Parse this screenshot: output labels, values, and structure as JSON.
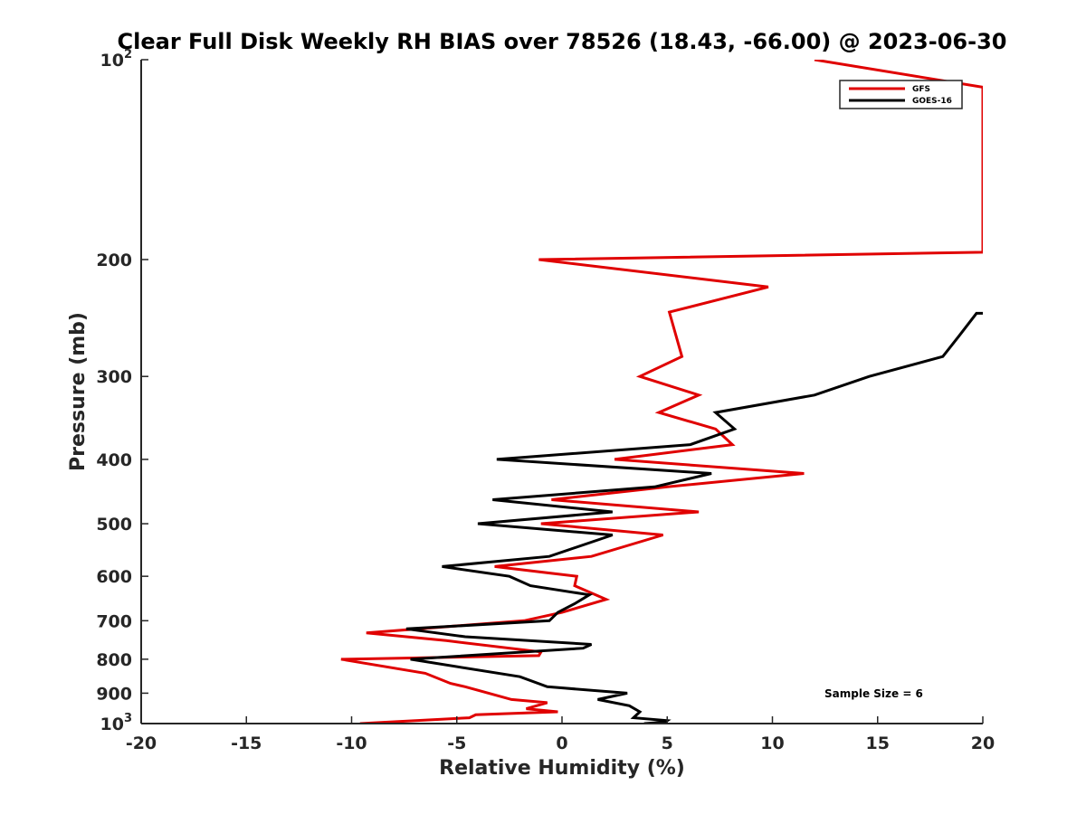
{
  "chart_data": {
    "type": "line",
    "title": "Clear Full Disk Weekly RH BIAS over 78526 (18.43, -66.00) @ 2023-06-30",
    "xlabel": "Relative Humidity (%)",
    "ylabel": "Pressure (mb)",
    "xlim": [
      -20,
      20
    ],
    "ylim": [
      100,
      1000
    ],
    "yscale": "log",
    "y_reversed": true,
    "grid": false,
    "legend_position": "top-right",
    "note": "Sample Size = 6",
    "x_ticks": [
      "-20",
      "-15",
      "-10",
      "-5",
      "0",
      "5",
      "10",
      "15",
      "20"
    ],
    "x_tick_values": [
      -20,
      -15,
      -10,
      -5,
      0,
      5,
      10,
      15,
      20
    ],
    "y_ticks": [
      {
        "value": 100,
        "base": "10",
        "exp": "2"
      },
      {
        "value": 200,
        "base": "200",
        "exp": ""
      },
      {
        "value": 300,
        "base": "300",
        "exp": ""
      },
      {
        "value": 400,
        "base": "400",
        "exp": ""
      },
      {
        "value": 500,
        "base": "500",
        "exp": ""
      },
      {
        "value": 600,
        "base": "600",
        "exp": ""
      },
      {
        "value": 700,
        "base": "700",
        "exp": ""
      },
      {
        "value": 800,
        "base": "800",
        "exp": ""
      },
      {
        "value": 900,
        "base": "900",
        "exp": ""
      },
      {
        "value": 1000,
        "base": "10",
        "exp": "3"
      }
    ],
    "series": [
      {
        "name": "GFS",
        "color": "#e00000",
        "points": [
          [
            12.0,
            100
          ],
          [
            20.0,
            110
          ],
          [
            20.0,
            195
          ],
          [
            -1.1,
            200
          ],
          [
            9.8,
            220
          ],
          [
            5.1,
            240
          ],
          [
            5.7,
            280
          ],
          [
            3.7,
            300
          ],
          [
            6.5,
            320
          ],
          [
            4.6,
            340
          ],
          [
            7.3,
            360
          ],
          [
            8.1,
            380
          ],
          [
            2.5,
            400
          ],
          [
            11.5,
            420
          ],
          [
            5.0,
            440
          ],
          [
            -0.5,
            460
          ],
          [
            6.5,
            480
          ],
          [
            -1.0,
            500
          ],
          [
            4.8,
            520
          ],
          [
            1.4,
            560
          ],
          [
            -3.2,
            580
          ],
          [
            0.7,
            600
          ],
          [
            0.6,
            620
          ],
          [
            2.1,
            650
          ],
          [
            0.0,
            680
          ],
          [
            -1.8,
            700
          ],
          [
            -9.3,
            730
          ],
          [
            -5.5,
            750
          ],
          [
            -1.0,
            780
          ],
          [
            -1.1,
            790
          ],
          [
            -10.5,
            800
          ],
          [
            -6.5,
            840
          ],
          [
            -5.3,
            870
          ],
          [
            -4.6,
            880
          ],
          [
            -2.4,
            920
          ],
          [
            -0.7,
            930
          ],
          [
            -1.7,
            950
          ],
          [
            -0.2,
            960
          ],
          [
            -4.1,
            970
          ],
          [
            -4.4,
            980
          ],
          [
            -9.6,
            1000
          ]
        ]
      },
      {
        "name": "GOES-16",
        "color": "#000000",
        "points": [
          [
            20.0,
            241
          ],
          [
            19.7,
            241
          ],
          [
            18.9,
            260
          ],
          [
            18.1,
            280
          ],
          [
            14.6,
            300
          ],
          [
            12.0,
            320
          ],
          [
            7.3,
            340
          ],
          [
            8.2,
            360
          ],
          [
            6.1,
            380
          ],
          [
            -3.1,
            400
          ],
          [
            7.1,
            420
          ],
          [
            4.4,
            440
          ],
          [
            -3.3,
            460
          ],
          [
            2.4,
            480
          ],
          [
            -4.0,
            500
          ],
          [
            2.4,
            520
          ],
          [
            -0.6,
            560
          ],
          [
            -5.7,
            580
          ],
          [
            -2.5,
            600
          ],
          [
            -1.5,
            620
          ],
          [
            1.3,
            640
          ],
          [
            0.6,
            660
          ],
          [
            -0.2,
            680
          ],
          [
            -0.6,
            700
          ],
          [
            -7.4,
            720
          ],
          [
            -4.6,
            740
          ],
          [
            1.4,
            760
          ],
          [
            1.0,
            770
          ],
          [
            -7.2,
            800
          ],
          [
            -2.0,
            850
          ],
          [
            -0.7,
            880
          ],
          [
            3.1,
            900
          ],
          [
            1.7,
            920
          ],
          [
            3.2,
            940
          ],
          [
            3.7,
            960
          ],
          [
            3.4,
            980
          ],
          [
            5.0,
            990
          ],
          [
            4.9,
            995
          ],
          [
            3.9,
            1000
          ]
        ]
      }
    ]
  }
}
